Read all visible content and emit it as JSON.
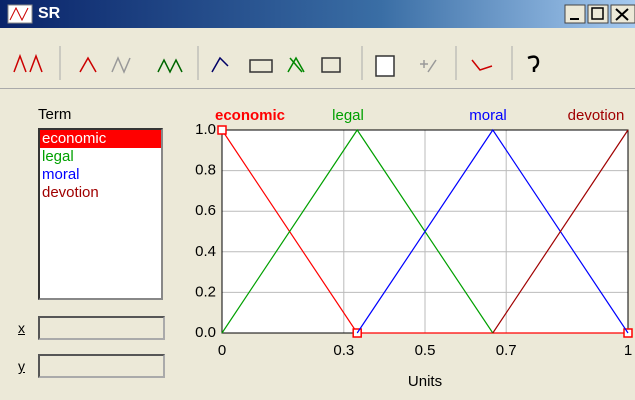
{
  "window": {
    "title": "SR"
  },
  "terms": {
    "label": "Term",
    "items": [
      "economic",
      "legal",
      "moral",
      "devotion"
    ],
    "selected_index": 0
  },
  "fields": {
    "x_label": "x",
    "y_label": "y"
  },
  "chart_data": {
    "type": "line",
    "xlabel": "Units",
    "series": [
      {
        "name": "economic",
        "color": "#ff0000",
        "x": [
          0,
          0.333,
          1
        ],
        "values": [
          1,
          0,
          0
        ],
        "marker": "square"
      },
      {
        "name": "legal",
        "color": "#00a000",
        "x": [
          0,
          0.333,
          0.667
        ],
        "values": [
          0,
          1,
          0
        ]
      },
      {
        "name": "moral",
        "color": "#0000ff",
        "x": [
          0.333,
          0.667,
          1
        ],
        "values": [
          0,
          1,
          0
        ]
      },
      {
        "name": "devotion",
        "color": "#a00000",
        "x": [
          0.667,
          1
        ],
        "values": [
          0,
          1
        ]
      }
    ],
    "xlim": [
      0,
      1
    ],
    "ylim": [
      0,
      1
    ],
    "xticks": [
      0,
      0.3,
      0.5,
      0.7,
      1
    ],
    "yticks": [
      {
        "value": 0,
        "label": "0.0"
      },
      {
        "value": 0.2,
        "label": "0.2"
      },
      {
        "value": 0.4,
        "label": "0.4"
      },
      {
        "value": 0.6,
        "label": "0.6"
      },
      {
        "value": 0.8,
        "label": "0.8"
      },
      {
        "value": 1,
        "label": "1.0"
      }
    ],
    "grid": true
  }
}
